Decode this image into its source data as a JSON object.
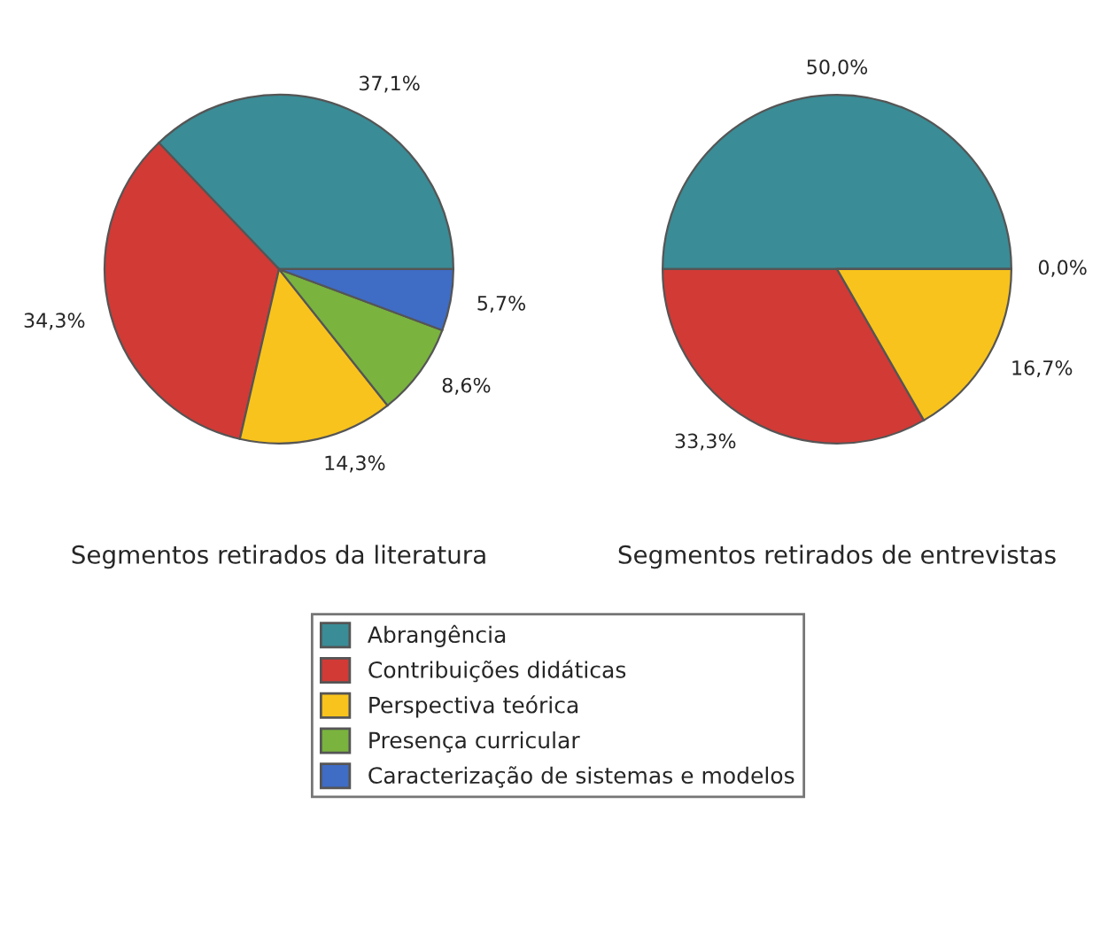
{
  "chart_data": [
    {
      "type": "pie",
      "xlabel": "Segmentos retirados da literatura",
      "categories": [
        "Abrangência",
        "Contribuições didáticas",
        "Perspectiva teórica",
        "Presença curricular",
        "Caracterização de sistemas e modelos"
      ],
      "values": [
        37.1,
        34.3,
        14.3,
        8.6,
        5.7
      ],
      "value_labels": [
        "37,1%",
        "34,3%",
        "14,3%",
        "8,6%",
        "5,7%"
      ],
      "colors": [
        "#3a8c96",
        "#d23a36",
        "#f8c31c",
        "#7ab33e",
        "#3f6cc4"
      ],
      "legend": "bottom"
    },
    {
      "type": "pie",
      "xlabel": "Segmentos retirados de entrevistas",
      "values": [
        50.0,
        33.3,
        16.7,
        0.0,
        0.0
      ],
      "value_labels": [
        "50,0%",
        "33,3%",
        "16,7%",
        "0,0%",
        null
      ],
      "colors": [
        "#3a8c96",
        "#d23a36",
        "#f8c31c",
        "#7ab33e",
        "#3f6cc4"
      ]
    }
  ]
}
